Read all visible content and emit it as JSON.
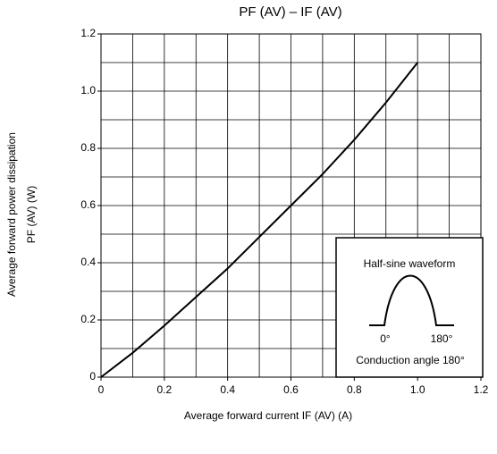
{
  "chart_data": {
    "type": "line",
    "title": "PF (AV) – IF (AV)",
    "y_label": [
      "Average forward power dissipation",
      "PF (AV)   (W)"
    ],
    "x_label": "Average forward current   IF (AV)   (A)",
    "xlim": [
      0,
      1.2
    ],
    "ylim": [
      0,
      1.2
    ],
    "xticks": [
      0,
      0.2,
      0.4,
      0.6,
      0.8,
      {
        "value": 1,
        "label": "1.0"
      },
      1.2
    ],
    "yticks": [
      0,
      0.2,
      0.4,
      0.6,
      0.8,
      {
        "value": 1,
        "label": "1.0"
      },
      1.2
    ],
    "xgrid": [
      0,
      0.1,
      0.2,
      0.3,
      0.4,
      0.5,
      0.6,
      0.7,
      0.8,
      0.9,
      1,
      1.1,
      1.2
    ],
    "ygrid": [
      0,
      0.1,
      0.2,
      0.3,
      0.4,
      0.5,
      0.6,
      0.7,
      0.8,
      0.9,
      1,
      1.1,
      1.2
    ],
    "x": [
      0,
      0.1,
      0.2,
      0.3,
      0.4,
      0.5,
      0.6,
      0.7,
      0.8,
      0.9,
      1.0
    ],
    "series": [
      {
        "color": "#000000",
        "values": [
          0,
          0.085,
          0.18,
          0.28,
          0.38,
          0.49,
          0.6,
          0.71,
          0.83,
          0.96,
          1.1
        ]
      }
    ],
    "inset": {
      "title": "Half-sine waveform",
      "start": "0°",
      "end": "180°",
      "caption": "Conduction angle 180°"
    }
  }
}
